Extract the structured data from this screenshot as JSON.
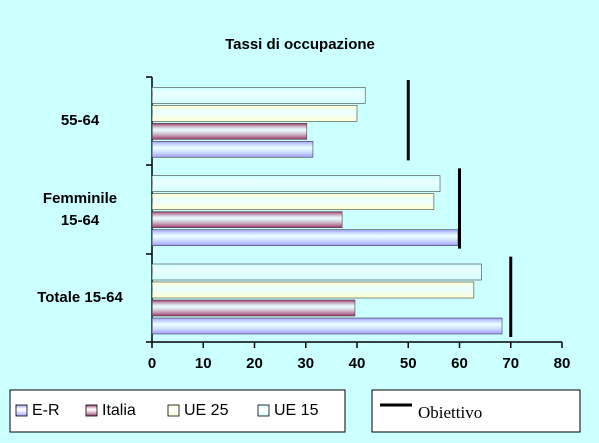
{
  "chart_data": {
    "type": "bar",
    "orientation": "horizontal",
    "title": "Tassi di occupazione",
    "categories": [
      "55-64",
      "Femminile 15-64",
      "Totale 15-64"
    ],
    "series": [
      {
        "name": "E-R",
        "color": "#9999ff",
        "values": [
          31.4,
          59.7,
          68.3
        ]
      },
      {
        "name": "Italia",
        "color": "#993366",
        "values": [
          30.2,
          37.1,
          39.6
        ]
      },
      {
        "name": "UE 25",
        "color": "#ffffcc",
        "values": [
          40,
          55,
          62.8
        ]
      },
      {
        "name": "UE 15",
        "color": "#ccffff",
        "values": [
          41.6,
          56.2,
          64.3
        ]
      }
    ],
    "objective": {
      "name": "Obiettivo",
      "color": "#000000",
      "values": [
        50,
        60,
        70
      ]
    },
    "xlim": [
      0,
      80
    ],
    "xticks": [
      0,
      10,
      20,
      30,
      40,
      50,
      60,
      70,
      80
    ]
  }
}
